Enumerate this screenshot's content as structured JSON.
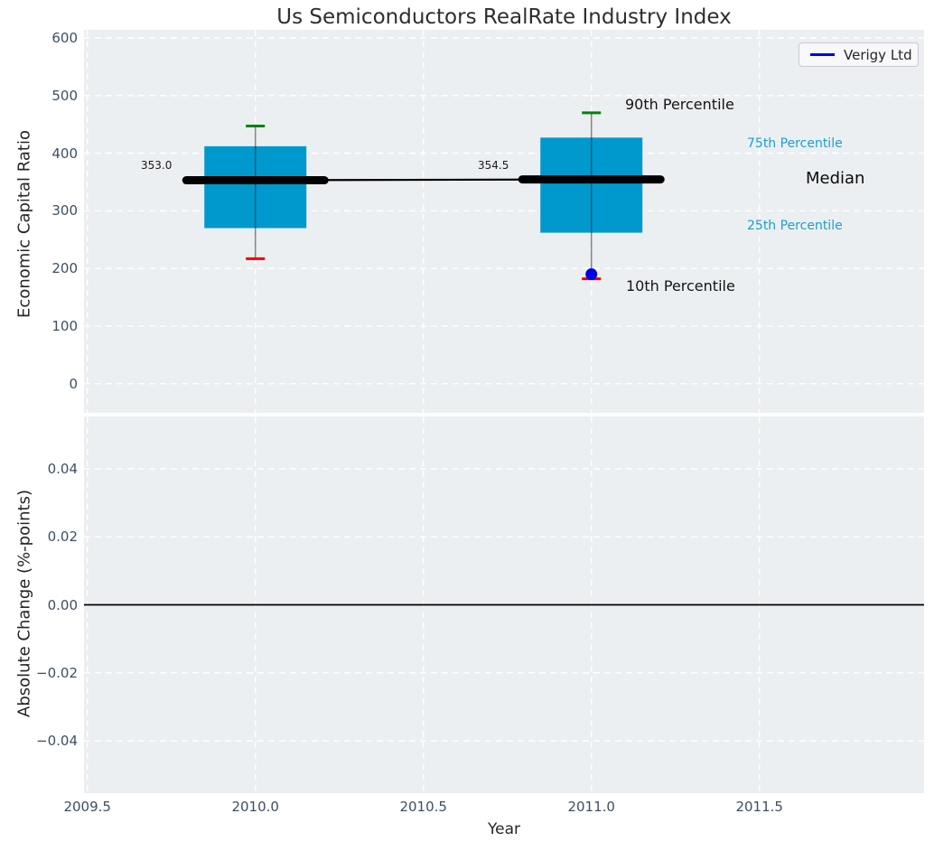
{
  "colors": {
    "panel_background": "#eceff1",
    "grid": "#ffffff",
    "box_fill": "#0099ce",
    "whisker": "rgba(40,40,40,0.55)",
    "cap_90th": "#008205",
    "cap_10th": "#ee0000",
    "median_line": "#000000",
    "trend_line": "#000000",
    "company": "#0000e8",
    "zero_line": "#000000",
    "tick_text": "#3d4f63",
    "cyan_label": "#189fd2"
  },
  "legend": {
    "label": "Verigy Ltd"
  },
  "chart_data": {
    "type": "boxplot",
    "title": "Us Semiconductors RealRate Industry Index",
    "xlabel": "Year",
    "xlim": [
      2009.49,
      2011.99
    ],
    "xticks": [
      {
        "value": 2009.5,
        "label": "2009.5"
      },
      {
        "value": 2010.0,
        "label": "2010.0"
      },
      {
        "value": 2010.5,
        "label": "2010.5"
      },
      {
        "value": 2011.0,
        "label": "2011.0"
      },
      {
        "value": 2011.5,
        "label": "2011.5"
      }
    ],
    "panels": [
      {
        "ylabel": "Economic Capital Ratio",
        "ylim": [
          -50.5,
          614
        ],
        "grid": true,
        "yticks": [
          {
            "value": 0,
            "label": "0"
          },
          {
            "value": 100,
            "label": "100"
          },
          {
            "value": 200,
            "label": "200"
          },
          {
            "value": 300,
            "label": "300"
          },
          {
            "value": 400,
            "label": "400"
          },
          {
            "value": 500,
            "label": "500"
          },
          {
            "value": 600,
            "label": "600"
          }
        ],
        "boxes": [
          {
            "x": 2010,
            "p10": 217,
            "p25": 270,
            "median": 353.0,
            "p75": 412,
            "p90": 447,
            "median_label": "353.0"
          },
          {
            "x": 2011,
            "p10": 182,
            "p25": 262,
            "median": 354.5,
            "p75": 427,
            "p90": 470,
            "median_label": "354.5"
          }
        ],
        "median_trend": [
          [
            2010,
            353.0
          ],
          [
            2011,
            354.5
          ]
        ],
        "company_series": {
          "name": "Verigy Ltd",
          "points": [
            [
              2011,
              190
            ]
          ]
        },
        "annotations": [
          {
            "id": "p90",
            "text": "90th Percentile"
          },
          {
            "id": "p75",
            "text": "75th Percentile"
          },
          {
            "id": "median",
            "text": "Median"
          },
          {
            "id": "p25",
            "text": "25th Percentile"
          },
          {
            "id": "p10",
            "text": "10th Percentile"
          }
        ]
      },
      {
        "ylabel": "Absolute Change (%-points)",
        "ylim": [
          -0.0554,
          0.0554
        ],
        "grid": true,
        "yticks": [
          {
            "value": 0.04,
            "label": "0.04"
          },
          {
            "value": 0.02,
            "label": "0.02"
          },
          {
            "value": 0.0,
            "label": "0.00"
          },
          {
            "value": -0.02,
            "label": "−0.02"
          },
          {
            "value": -0.04,
            "label": "−0.04"
          }
        ],
        "zero_line": 0.0
      }
    ]
  }
}
